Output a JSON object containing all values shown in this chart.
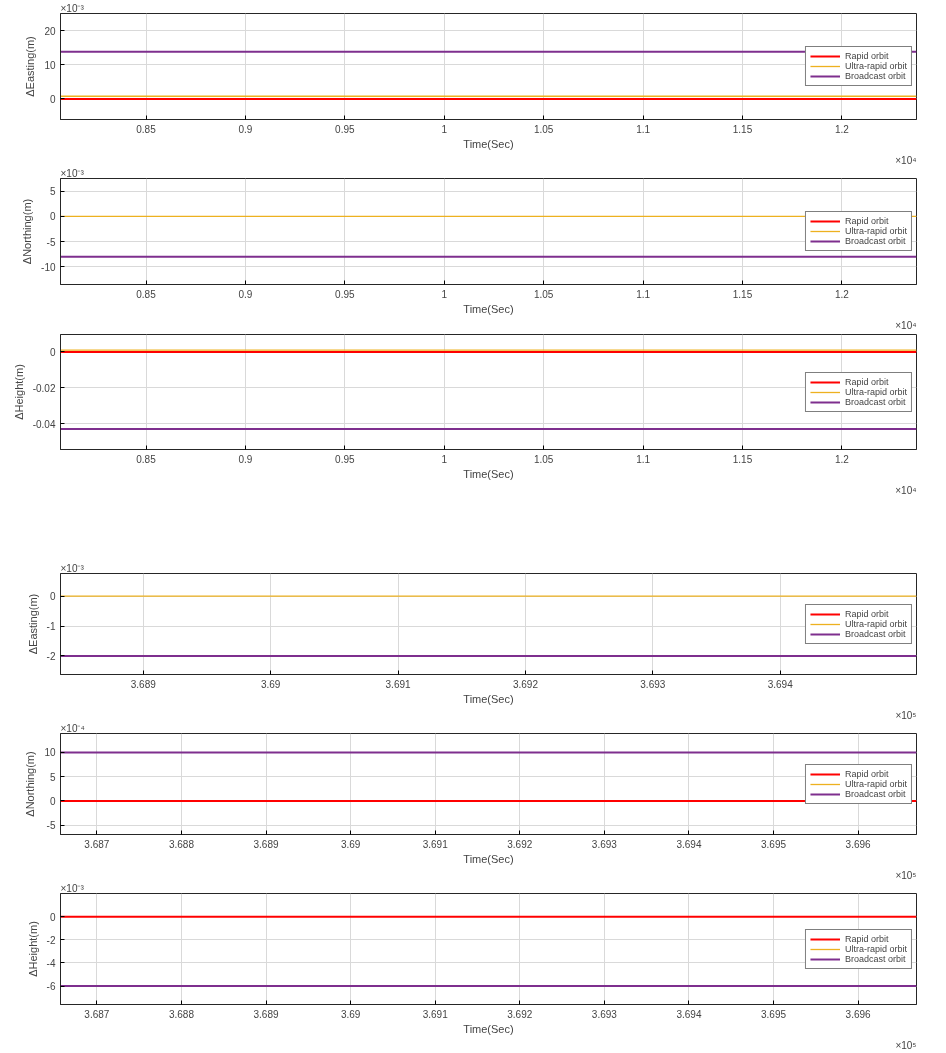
{
  "chart_data": [
    {
      "type": "line",
      "xlabel": "Time(Sec)",
      "ylabel": "ΔEasting(m)",
      "annotations": [
        "×10⁻³",
        "×10⁴"
      ],
      "x": [
        0.807,
        1.2375
      ],
      "xlim": [
        0.807,
        1.2375
      ],
      "xticks": [
        0.85,
        0.9,
        0.95,
        1,
        1.05,
        1.1,
        1.15,
        1.2
      ],
      "ylim": [
        -6,
        25
      ],
      "yticks": [
        0,
        10,
        20
      ],
      "grid": true,
      "legend": "right",
      "series": [
        {
          "name": "Rapid orbit",
          "color": "#ff0000",
          "values": [
            0,
            0
          ]
        },
        {
          "name": "Ultra-rapid orbit",
          "color": "#edb120",
          "values": [
            0.8,
            0.8
          ]
        },
        {
          "name": "Broadcast orbit",
          "color": "#7e2f8e",
          "values": [
            13.8,
            13.8
          ]
        }
      ]
    },
    {
      "type": "line",
      "xlabel": "Time(Sec)",
      "ylabel": "ΔNorthing(m)",
      "annotations": [
        "×10⁻³",
        "×10⁴"
      ],
      "x": [
        0.807,
        1.2375
      ],
      "xlim": [
        0.807,
        1.2375
      ],
      "xticks": [
        0.85,
        0.9,
        0.95,
        1,
        1.05,
        1.1,
        1.15,
        1.2
      ],
      "ylim": [
        -13.5,
        7.5
      ],
      "yticks": [
        -10,
        -5,
        0,
        5
      ],
      "grid": true,
      "legend": "right",
      "series": [
        {
          "name": "Rapid orbit",
          "color": "#ff0000",
          "values": [
            null,
            null
          ]
        },
        {
          "name": "Ultra-rapid orbit",
          "color": "#edb120",
          "values": [
            0,
            0
          ]
        },
        {
          "name": "Broadcast orbit",
          "color": "#7e2f8e",
          "values": [
            -8,
            -8
          ]
        }
      ]
    },
    {
      "type": "line",
      "xlabel": "Time(Sec)",
      "ylabel": "ΔHeight(m)",
      "annotations": [
        "×10⁴"
      ],
      "x": [
        0.807,
        1.2375
      ],
      "xlim": [
        0.807,
        1.2375
      ],
      "xticks": [
        0.85,
        0.9,
        0.95,
        1,
        1.05,
        1.1,
        1.15,
        1.2
      ],
      "ylim": [
        -0.0545,
        0.0097
      ],
      "yticks": [
        -0.04,
        -0.02,
        0
      ],
      "grid": true,
      "legend": "right",
      "series": [
        {
          "name": "Rapid orbit",
          "color": "#ff0000",
          "values": [
            0,
            0
          ]
        },
        {
          "name": "Ultra-rapid orbit",
          "color": "#edb120",
          "values": [
            0.001,
            0.001
          ]
        },
        {
          "name": "Broadcast orbit",
          "color": "#7e2f8e",
          "values": [
            -0.043,
            -0.043
          ]
        }
      ]
    },
    {
      "type": "line",
      "xlabel": "Time(Sec)",
      "ylabel": "ΔEasting(m)",
      "annotations": [
        "×10⁻³",
        "×10⁵"
      ],
      "x": [
        3.68835,
        3.69507
      ],
      "xlim": [
        3.68835,
        3.69507
      ],
      "xticks": [
        3.689,
        3.69,
        3.691,
        3.692,
        3.693,
        3.694
      ],
      "ylim": [
        -2.62,
        0.76
      ],
      "yticks": [
        -2,
        -1,
        0
      ],
      "grid": true,
      "legend": "right",
      "series": [
        {
          "name": "Rapid orbit",
          "color": "#ff0000",
          "values": [
            null,
            null
          ]
        },
        {
          "name": "Ultra-rapid orbit",
          "color": "#edb120",
          "values": [
            0,
            0
          ]
        },
        {
          "name": "Broadcast orbit",
          "color": "#7e2f8e",
          "values": [
            -2,
            -2
          ]
        }
      ]
    },
    {
      "type": "line",
      "xlabel": "Time(Sec)",
      "ylabel": "ΔNorthing(m)",
      "annotations": [
        "×10⁻⁴",
        "×10⁵"
      ],
      "x": [
        3.68657,
        3.69669
      ],
      "xlim": [
        3.68657,
        3.69669
      ],
      "xticks": [
        3.687,
        3.688,
        3.689,
        3.69,
        3.691,
        3.692,
        3.693,
        3.694,
        3.695,
        3.696
      ],
      "ylim": [
        -6.9,
        13.9
      ],
      "yticks": [
        -5,
        0,
        5,
        10
      ],
      "grid": true,
      "legend": "right",
      "series": [
        {
          "name": "Rapid orbit",
          "color": "#ff0000",
          "values": [
            0,
            0
          ]
        },
        {
          "name": "Ultra-rapid orbit",
          "color": "#edb120",
          "values": [
            null,
            null
          ]
        },
        {
          "name": "Broadcast orbit",
          "color": "#7e2f8e",
          "values": [
            10,
            10
          ]
        }
      ]
    },
    {
      "type": "line",
      "xlabel": "Time(Sec)",
      "ylabel": "ΔHeight(m)",
      "annotations": [
        "×10⁻³",
        "×10⁵"
      ],
      "x": [
        3.68657,
        3.69669
      ],
      "xlim": [
        3.68657,
        3.69669
      ],
      "xticks": [
        3.687,
        3.688,
        3.689,
        3.69,
        3.691,
        3.692,
        3.693,
        3.694,
        3.695,
        3.696
      ],
      "ylim": [
        -7.6,
        2.0
      ],
      "yticks": [
        -6,
        -4,
        -2,
        0
      ],
      "grid": true,
      "legend": "right",
      "series": [
        {
          "name": "Rapid orbit",
          "color": "#ff0000",
          "values": [
            0,
            0
          ]
        },
        {
          "name": "Ultra-rapid orbit",
          "color": "#edb120",
          "values": [
            null,
            null
          ]
        },
        {
          "name": "Broadcast orbit",
          "color": "#7e2f8e",
          "values": [
            -6,
            -6
          ]
        }
      ]
    }
  ]
}
